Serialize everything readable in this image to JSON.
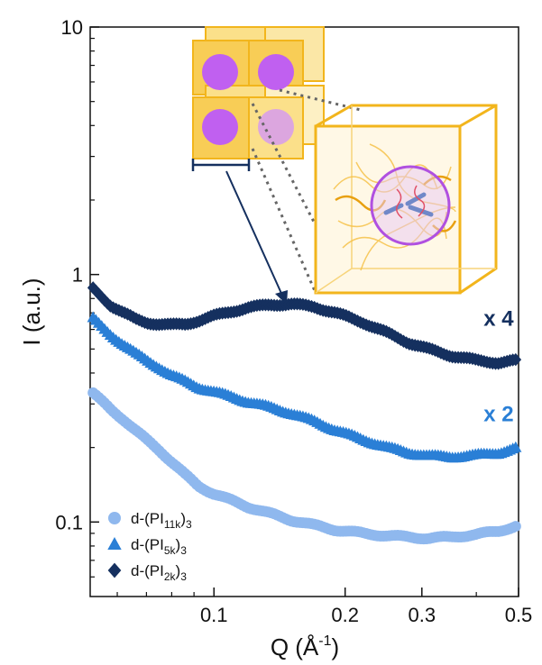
{
  "chart_data": {
    "type": "scatter",
    "xlabel": "Q (Å",
    "xlabel_sup": "-1",
    "xlabel_close": ")",
    "ylabel": "I (a.u.)",
    "x_scale": "log",
    "y_scale": "log",
    "xlim": [
      0.052,
      0.5
    ],
    "ylim": [
      0.05,
      10
    ],
    "x_ticks": [
      {
        "value": 0.1,
        "label": "0.1"
      },
      {
        "value": 0.2,
        "label": "0.2"
      },
      {
        "value": 0.3,
        "label": "0.3"
      },
      {
        "value": 0.5,
        "label": "0.5"
      }
    ],
    "y_ticks": [
      {
        "value": 0.1,
        "label": "0.1"
      },
      {
        "value": 1,
        "label": "1"
      },
      {
        "value": 10,
        "label": "10"
      }
    ],
    "grid": false,
    "legend_position": "bottom-left",
    "series": [
      {
        "name": "d-(PI11k)3",
        "legend": {
          "pre": "d-(PI",
          "sub": "11k",
          "post": ")",
          "post_sub": "3"
        },
        "marker": "circle",
        "color": "#8fb8ee",
        "x": [
          0.052,
          0.055,
          0.058,
          0.062,
          0.066,
          0.07,
          0.075,
          0.08,
          0.086,
          0.092,
          0.1,
          0.11,
          0.12,
          0.135,
          0.15,
          0.17,
          0.19,
          0.22,
          0.25,
          0.28,
          0.31,
          0.35,
          0.4,
          0.45,
          0.5
        ],
        "y": [
          0.34,
          0.31,
          0.285,
          0.26,
          0.235,
          0.215,
          0.195,
          0.175,
          0.155,
          0.14,
          0.13,
          0.122,
          0.115,
          0.108,
          0.102,
          0.097,
          0.093,
          0.09,
          0.088,
          0.087,
          0.086,
          0.087,
          0.089,
          0.092,
          0.097
        ]
      },
      {
        "name": "d-(PI5k)3",
        "legend": {
          "pre": "d-(PI",
          "sub": "5k",
          "post": ")",
          "post_sub": "3"
        },
        "marker": "triangle",
        "color": "#2a7fd6",
        "x": [
          0.052,
          0.055,
          0.058,
          0.062,
          0.066,
          0.07,
          0.075,
          0.08,
          0.086,
          0.092,
          0.1,
          0.11,
          0.12,
          0.135,
          0.15,
          0.17,
          0.19,
          0.22,
          0.25,
          0.28,
          0.31,
          0.35,
          0.4,
          0.45,
          0.5
        ],
        "y": [
          0.68,
          0.62,
          0.57,
          0.52,
          0.48,
          0.45,
          0.42,
          0.39,
          0.37,
          0.35,
          0.335,
          0.32,
          0.305,
          0.29,
          0.275,
          0.255,
          0.235,
          0.215,
          0.2,
          0.19,
          0.185,
          0.183,
          0.186,
          0.19,
          0.2
        ]
      },
      {
        "name": "d-(PI2k)3",
        "legend": {
          "pre": "d-(PI",
          "sub": "2k",
          "post": ")",
          "post_sub": "3"
        },
        "marker": "diamond",
        "color": "#15305f",
        "x": [
          0.052,
          0.055,
          0.058,
          0.062,
          0.066,
          0.07,
          0.075,
          0.08,
          0.086,
          0.092,
          0.1,
          0.11,
          0.12,
          0.135,
          0.15,
          0.17,
          0.19,
          0.22,
          0.25,
          0.28,
          0.31,
          0.35,
          0.4,
          0.45,
          0.5
        ],
        "y": [
          0.9,
          0.82,
          0.75,
          0.7,
          0.66,
          0.64,
          0.63,
          0.625,
          0.63,
          0.65,
          0.68,
          0.71,
          0.735,
          0.755,
          0.76,
          0.74,
          0.7,
          0.64,
          0.58,
          0.53,
          0.5,
          0.47,
          0.45,
          0.44,
          0.45
        ]
      }
    ],
    "annotations": [
      {
        "text": "x 4",
        "x": 0.45,
        "y": 0.62,
        "color": "#15305f"
      },
      {
        "text": "x 2",
        "x": 0.45,
        "y": 0.255,
        "color": "#2a7fd6"
      }
    ]
  }
}
